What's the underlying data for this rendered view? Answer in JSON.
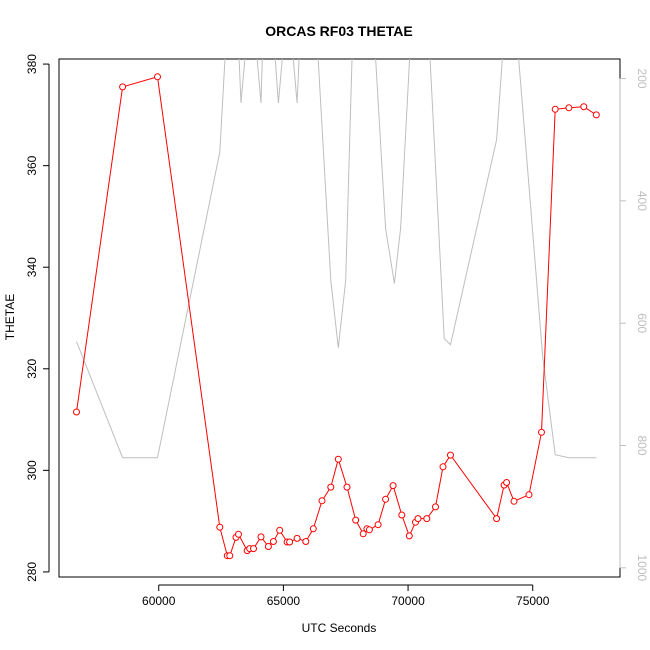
{
  "chart_data": {
    "type": "line",
    "title": "ORCAS RF03 THETAE",
    "xlabel": "UTC Seconds",
    "ylabel": "THETAE",
    "xlim": [
      56000,
      78500
    ],
    "ylim": [
      279,
      381
    ],
    "y2lim": [
      1015,
      168
    ],
    "y2_reversed": true,
    "x_ticks": [
      60000,
      65000,
      70000,
      75000
    ],
    "y_ticks": [
      280,
      300,
      320,
      340,
      360,
      380
    ],
    "y2_ticks": [
      200,
      400,
      600,
      800,
      1000
    ],
    "grid": false,
    "legend": "none",
    "colors": {
      "thetae": "#ff0000",
      "pressure": "#bebebe"
    },
    "series": [
      {
        "role": "thetae",
        "axis": "left",
        "x": [
          56700,
          58550,
          59950,
          62450,
          62750,
          62850,
          63100,
          63200,
          63550,
          63650,
          63800,
          64100,
          64400,
          64600,
          64850,
          65150,
          65250,
          65550,
          65900,
          66200,
          66550,
          66900,
          67200,
          67550,
          67900,
          68200,
          68350,
          68450,
          68800,
          69100,
          69400,
          69750,
          70050,
          70300,
          70400,
          70750,
          71100,
          71400,
          71700,
          73550,
          73850,
          73950,
          74250,
          74850,
          75350,
          75900,
          76450,
          77050,
          77550
        ],
        "y": [
          311.5,
          375.5,
          377.5,
          288.8,
          283.2,
          283.2,
          286.8,
          287.4,
          284.2,
          284.6,
          284.6,
          286.9,
          285.0,
          286.0,
          288.2,
          285.9,
          285.9,
          286.6,
          286.0,
          288.5,
          294.0,
          296.7,
          302.2,
          296.7,
          290.2,
          287.5,
          288.5,
          288.3,
          289.3,
          294.3,
          297.0,
          291.2,
          287.1,
          289.8,
          290.5,
          290.5,
          292.8,
          300.7,
          303.0,
          290.5,
          297.1,
          297.6,
          293.9,
          295.2,
          307.5,
          371.1,
          371.4,
          371.6,
          370.0
        ]
      },
      {
        "role": "pressure",
        "axis": "right",
        "x": [
          56700,
          58550,
          59950,
          62450,
          62750,
          63150,
          63300,
          63600,
          63800,
          64100,
          64200,
          64550,
          64800,
          65100,
          65250,
          65550,
          65700,
          65900,
          66300,
          66900,
          67200,
          67500,
          67800,
          68300,
          68600,
          69100,
          69450,
          69700,
          70150,
          70400,
          70800,
          71450,
          71700,
          73550,
          73900,
          74300,
          74800,
          75400,
          75900,
          76450,
          77550
        ],
        "y": [
          630,
          820,
          820,
          320,
          100,
          100,
          240,
          100,
          100,
          240,
          100,
          100,
          240,
          100,
          100,
          240,
          100,
          100,
          100,
          530,
          640,
          530,
          100,
          100,
          100,
          445,
          535,
          445,
          100,
          100,
          100,
          625,
          635,
          300,
          100,
          100,
          350,
          655,
          815,
          820,
          820
        ]
      }
    ]
  }
}
